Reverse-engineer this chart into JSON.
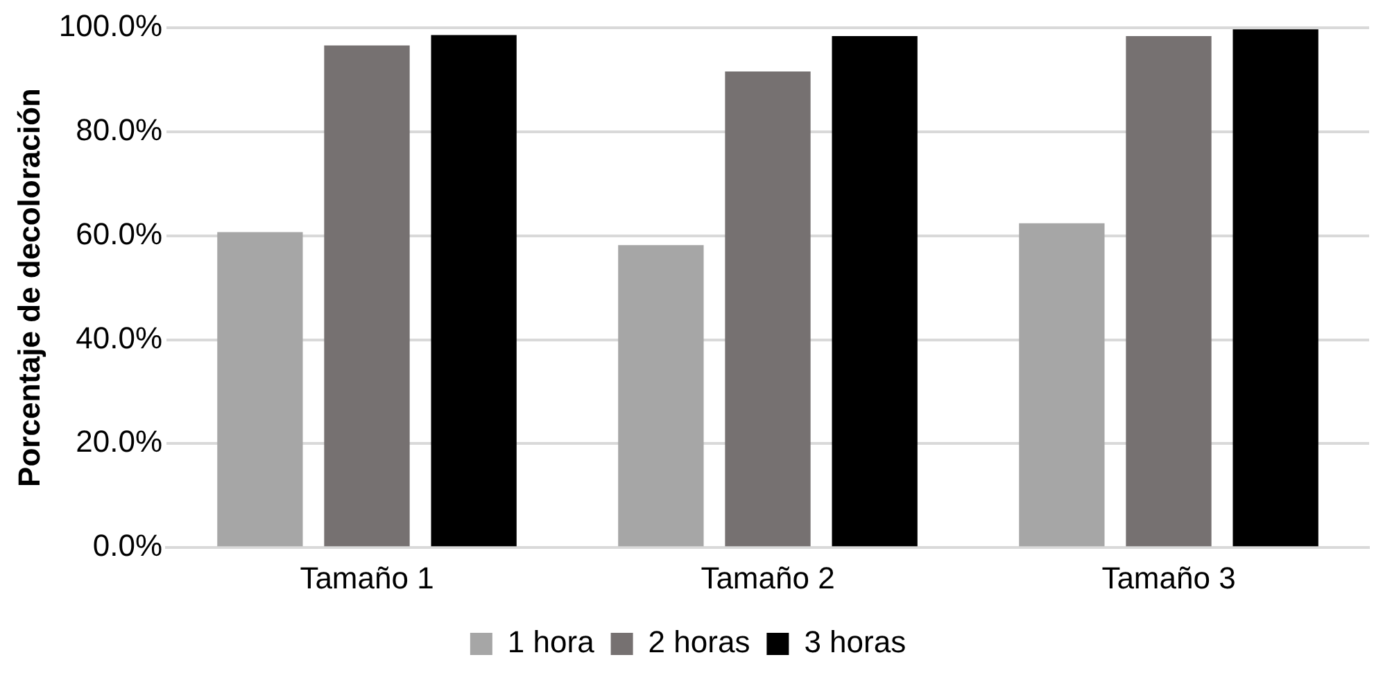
{
  "chart_data": {
    "type": "bar",
    "ylabel": "Porcentaje de decoloración",
    "categories": [
      "Tamaño 1",
      "Tamaño 2",
      "Tamaño 3"
    ],
    "series": [
      {
        "name": "1 hora",
        "color": "#a6a6a6",
        "values": [
          60.7,
          58.2,
          62.4
        ]
      },
      {
        "name": "2 horas",
        "color": "#767171",
        "values": [
          96.6,
          91.6,
          98.4
        ]
      },
      {
        "name": "3 horas",
        "color": "#000000",
        "values": [
          98.6,
          98.4,
          99.7
        ]
      }
    ],
    "ylim": [
      0,
      100
    ],
    "yticks": [
      {
        "value": 0,
        "label": "0.0%"
      },
      {
        "value": 20,
        "label": "20.0%"
      },
      {
        "value": 40,
        "label": "40.0%"
      },
      {
        "value": 60,
        "label": "60.0%"
      },
      {
        "value": 80,
        "label": "80.0%"
      },
      {
        "value": 100,
        "label": "100.0%"
      }
    ],
    "grid": "y",
    "legend": "bottom"
  }
}
